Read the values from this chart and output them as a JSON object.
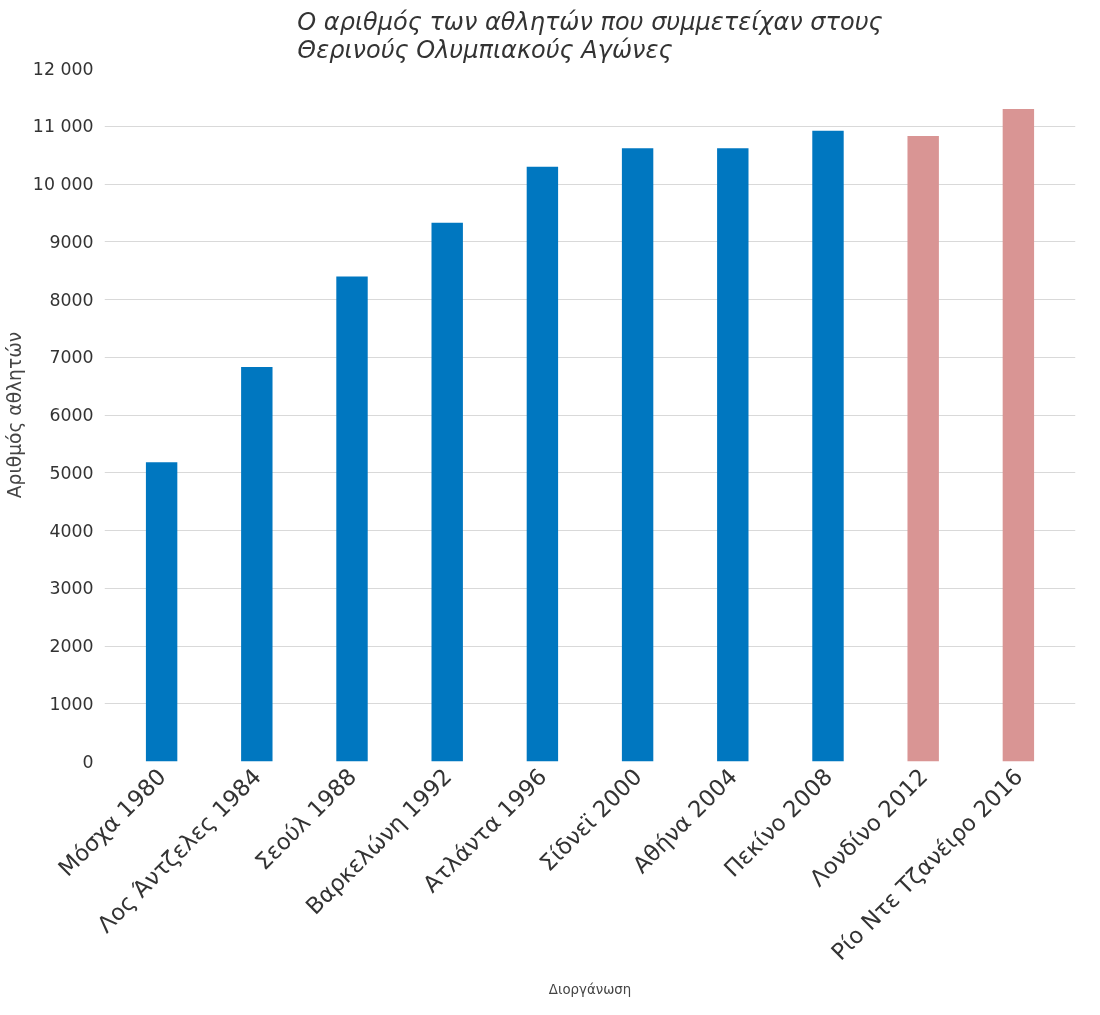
{
  "chart_data": {
    "type": "bar",
    "title": "Ο αριθμός των αθλητών που συμμετείχαν στους Θερινούς Ολυμπιακούς Αγώνες",
    "xlabel": "Διοργάνωση",
    "ylabel": "Αριθμός αθλητών",
    "categories": [
      "Μόσχα 1980",
      "Λος Άντζελες 1984",
      "Σεούλ 1988",
      "Βαρκελώνη 1992",
      "Ατλάντα 1996",
      "Σίδνεϊ 2000",
      "Αθήνα 2004",
      "Πεκίνο 2008",
      "Λονδίνο 2012",
      "Ρίο Ντε Τζανέιρο 2016"
    ],
    "values": [
      5180,
      6830,
      8400,
      9330,
      10300,
      10620,
      10620,
      10920,
      10830,
      11300
    ],
    "colors": [
      "#0077c0",
      "#0077c0",
      "#0077c0",
      "#0077c0",
      "#0077c0",
      "#0077c0",
      "#0077c0",
      "#0077c0",
      "#d99594",
      "#d99594"
    ],
    "ylim": [
      0,
      12000
    ],
    "yticks": [
      0,
      1000,
      2000,
      3000,
      4000,
      5000,
      6000,
      7000,
      8000,
      9000,
      {
        "value": 10000,
        "label": "10 000"
      },
      {
        "value": 11000,
        "label": "11 000"
      },
      {
        "value": 12000,
        "label": "12 000"
      }
    ],
    "grid": "y"
  }
}
